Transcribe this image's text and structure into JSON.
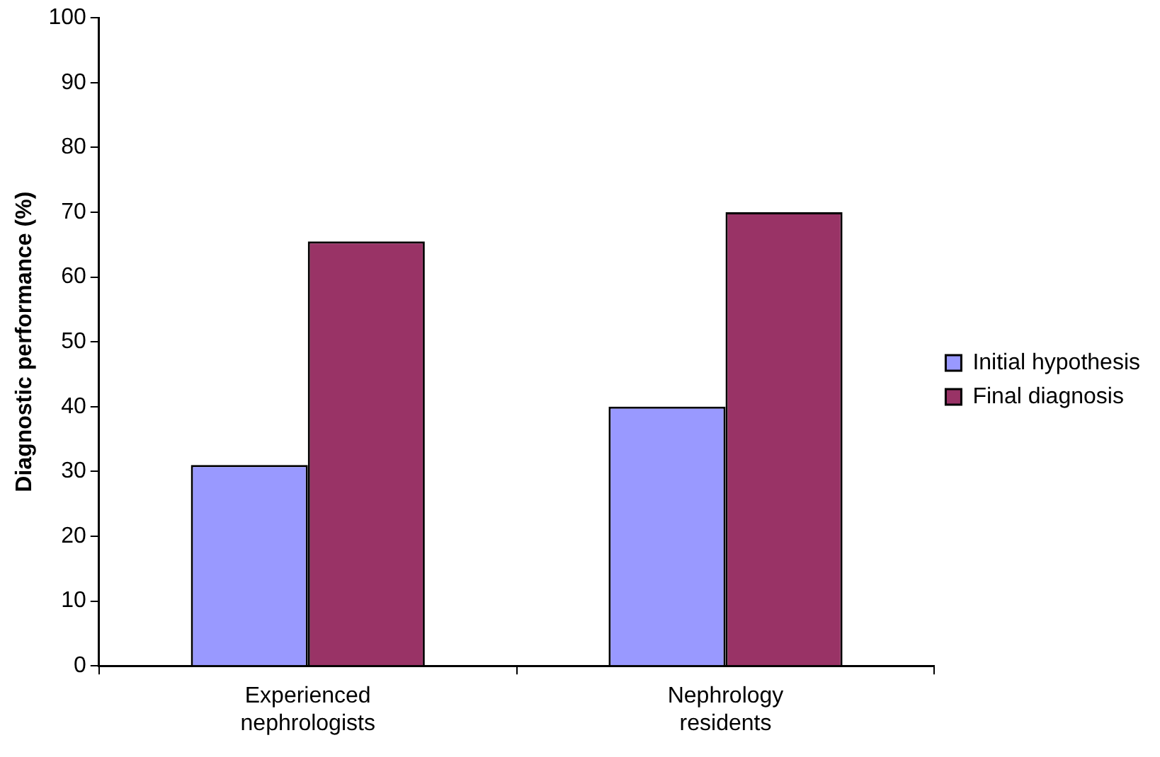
{
  "chart_data": {
    "type": "bar",
    "ylabel": "Diagnostic performance (%)",
    "categories": [
      "Experienced nephrologists",
      "Nephrology residents"
    ],
    "series": [
      {
        "name": "Initial hypothesis",
        "color": "#9999ff",
        "values": [
          31,
          40
        ]
      },
      {
        "name": "Final diagnosis",
        "color": "#993366",
        "values": [
          65.5,
          70
        ]
      }
    ],
    "ylim": [
      0,
      100
    ],
    "yticks": [
      0,
      10,
      20,
      30,
      40,
      50,
      60,
      70,
      80,
      90,
      100
    ],
    "grid": false,
    "legend": "right"
  }
}
